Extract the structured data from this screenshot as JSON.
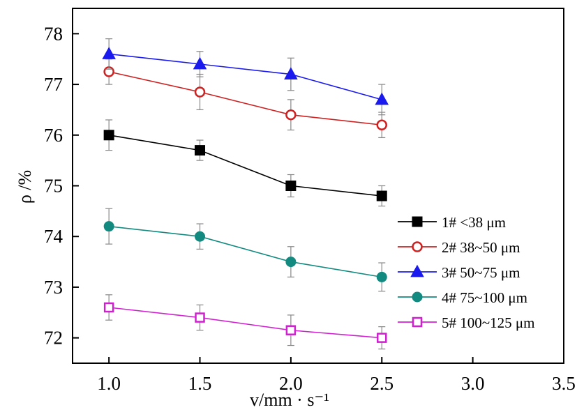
{
  "chart_data": {
    "type": "line",
    "xlabel": "v/mm · s⁻¹",
    "ylabel": "ρ /%",
    "xlim": [
      0.8,
      3.5
    ],
    "ylim": [
      71.5,
      78.5
    ],
    "xticks": [
      "1.0",
      "1.5",
      "2.0",
      "2.5",
      "3.0",
      "3.5"
    ],
    "yticks": [
      "72",
      "73",
      "74",
      "75",
      "76",
      "77",
      "78"
    ],
    "legend_position": "right",
    "error_bars": true,
    "x": [
      1.0,
      1.5,
      2.0,
      2.5
    ],
    "series": [
      {
        "name": "1# <38 μm",
        "color": "#000000",
        "marker": "square-filled",
        "values": [
          76.0,
          75.7,
          75.0,
          74.8
        ],
        "errors": [
          0.3,
          0.2,
          0.22,
          0.2
        ]
      },
      {
        "name": "2# 38~50 μm",
        "color": "#cc2222",
        "marker": "circle-open",
        "values": [
          77.25,
          76.85,
          76.4,
          76.2
        ],
        "errors": [
          0.25,
          0.35,
          0.3,
          0.25
        ]
      },
      {
        "name": "3# 50~75 μm",
        "color": "#1a1aee",
        "marker": "triangle-filled",
        "values": [
          77.6,
          77.4,
          77.2,
          76.7
        ],
        "errors": [
          0.3,
          0.25,
          0.32,
          0.3
        ]
      },
      {
        "name": "4# 75~100 μm",
        "color": "#128a80",
        "marker": "circle-filled",
        "values": [
          74.2,
          74.0,
          73.5,
          73.2
        ],
        "errors": [
          0.35,
          0.25,
          0.3,
          0.28
        ]
      },
      {
        "name": "5# 100~125 μm",
        "color": "#d020d0",
        "marker": "square-open",
        "values": [
          72.6,
          72.4,
          72.15,
          72.0
        ],
        "errors": [
          0.25,
          0.25,
          0.3,
          0.22
        ]
      }
    ]
  }
}
